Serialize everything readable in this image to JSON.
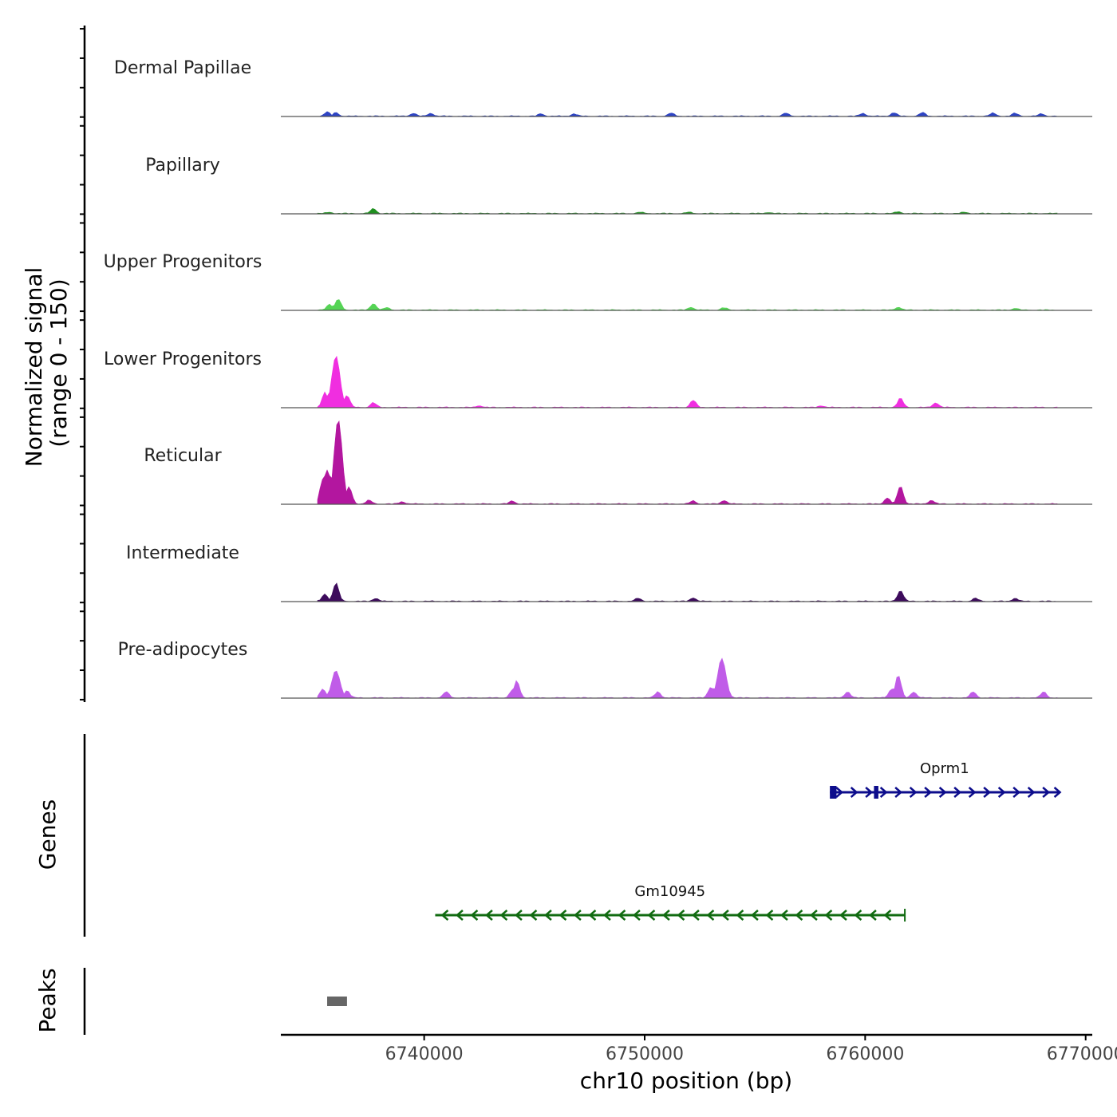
{
  "chart_data": {
    "type": "area",
    "region": {
      "chromosome": "chr10",
      "start": 6733500,
      "end": 6770300
    },
    "y_axis_label": "Normalized signal",
    "y_axis_sublabel": "(range 0 - 150)",
    "ylim": [
      0,
      150
    ],
    "x_axis_label": "chr10 position (bp)",
    "x_ticks": [
      6740000,
      6750000,
      6760000,
      6770000
    ],
    "x_tick_labels": [
      "6740000",
      "6750000",
      "6760000",
      "6770000"
    ],
    "tracks": [
      {
        "name": "Dermal Papillae",
        "color": "#2e44c4",
        "peaks": [
          [
            6735600,
            7
          ],
          [
            6736000,
            6
          ],
          [
            6739500,
            5
          ],
          [
            6740300,
            5
          ],
          [
            6745300,
            4
          ],
          [
            6746800,
            4
          ],
          [
            6751200,
            5
          ],
          [
            6756400,
            5
          ],
          [
            6759900,
            5
          ],
          [
            6761300,
            6
          ],
          [
            6762600,
            6
          ],
          [
            6765800,
            5
          ],
          [
            6766800,
            5
          ],
          [
            6768000,
            4
          ]
        ]
      },
      {
        "name": "Papillary",
        "color": "#1f8f1f",
        "peaks": [
          [
            6737700,
            8
          ],
          [
            6735700,
            2
          ],
          [
            6749800,
            2
          ],
          [
            6752000,
            2
          ],
          [
            6755600,
            2
          ],
          [
            6761500,
            3
          ],
          [
            6764500,
            2
          ]
        ]
      },
      {
        "name": "Upper Progenitors",
        "color": "#55d455",
        "peaks": [
          [
            6736100,
            18
          ],
          [
            6735700,
            10
          ],
          [
            6737700,
            11
          ],
          [
            6738300,
            4
          ],
          [
            6752100,
            5
          ],
          [
            6753600,
            4
          ],
          [
            6761500,
            5
          ],
          [
            6766800,
            3
          ]
        ]
      },
      {
        "name": "Lower Progenitors",
        "color": "#f02ee0",
        "peaks": [
          [
            6736000,
            85
          ],
          [
            6735500,
            25
          ],
          [
            6736500,
            20
          ],
          [
            6737700,
            8
          ],
          [
            6752200,
            12
          ],
          [
            6761600,
            15
          ],
          [
            6763200,
            8
          ],
          [
            6758000,
            3
          ],
          [
            6742500,
            3
          ]
        ]
      },
      {
        "name": "Reticular",
        "color": "#b3169f",
        "peaks": [
          [
            6736100,
            140
          ],
          [
            6735600,
            55
          ],
          [
            6735400,
            40
          ],
          [
            6736600,
            28
          ],
          [
            6737500,
            6
          ],
          [
            6761600,
            30
          ],
          [
            6761000,
            10
          ],
          [
            6763000,
            6
          ],
          [
            6753600,
            6
          ],
          [
            6752200,
            5
          ],
          [
            6744000,
            5
          ],
          [
            6739000,
            4
          ]
        ]
      },
      {
        "name": "Intermediate",
        "color": "#3d0b5c",
        "peaks": [
          [
            6736000,
            30
          ],
          [
            6735500,
            12
          ],
          [
            6737800,
            5
          ],
          [
            6761600,
            18
          ],
          [
            6752200,
            6
          ],
          [
            6749700,
            5
          ],
          [
            6765000,
            5
          ],
          [
            6766800,
            5
          ]
        ]
      },
      {
        "name": "Pre-adipocytes",
        "color": "#c05ce8",
        "peaks": [
          [
            6736000,
            45
          ],
          [
            6735400,
            15
          ],
          [
            6736500,
            12
          ],
          [
            6744200,
            28
          ],
          [
            6744000,
            12
          ],
          [
            6753500,
            65
          ],
          [
            6753000,
            18
          ],
          [
            6761500,
            38
          ],
          [
            6761200,
            15
          ],
          [
            6762200,
            10
          ],
          [
            6741000,
            10
          ],
          [
            6750600,
            10
          ],
          [
            6759200,
            10
          ],
          [
            6764900,
            10
          ],
          [
            6768100,
            10
          ]
        ]
      }
    ],
    "genes": [
      {
        "name": "Oprm1",
        "start": 6758400,
        "end": 6768800,
        "strand": "+",
        "color": "#0d0d8c",
        "exons": [
          [
            6758400,
            6758700
          ],
          [
            6760400,
            6760600
          ]
        ]
      },
      {
        "name": "Gm10945",
        "start": 6740500,
        "end": 6761800,
        "strand": "-",
        "color": "#116b11",
        "exons": []
      }
    ],
    "gene_panel_label": "Genes",
    "peaks_panel_label": "Peaks",
    "peak_regions": [
      [
        6735600,
        6736500
      ]
    ],
    "peak_color": "#666666"
  }
}
